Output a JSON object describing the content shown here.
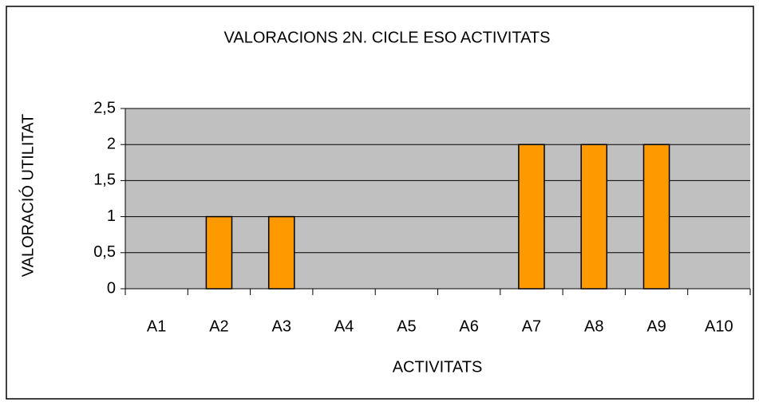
{
  "chart_data": {
    "type": "bar",
    "title": "VALORACIONS 2N. CICLE ESO ACTIVITATS",
    "x_label": "ACTIVITATS",
    "y_label": "VALORACIÓ UTILITAT",
    "categories": [
      "A1",
      "A2",
      "A3",
      "A4",
      "A5",
      "A6",
      "A7",
      "A8",
      "A9",
      "A10"
    ],
    "values": [
      0,
      1,
      1,
      0,
      0,
      0,
      2,
      2,
      2,
      0
    ],
    "color": "#ff9900",
    "ylim": [
      0,
      2.5
    ],
    "yticks": [
      0,
      {
        "value": 0.5,
        "label": "0,5"
      },
      1,
      {
        "value": 1.5,
        "label": "1,5"
      },
      2,
      {
        "value": 2.5,
        "label": "2,5"
      }
    ],
    "grid": true
  }
}
